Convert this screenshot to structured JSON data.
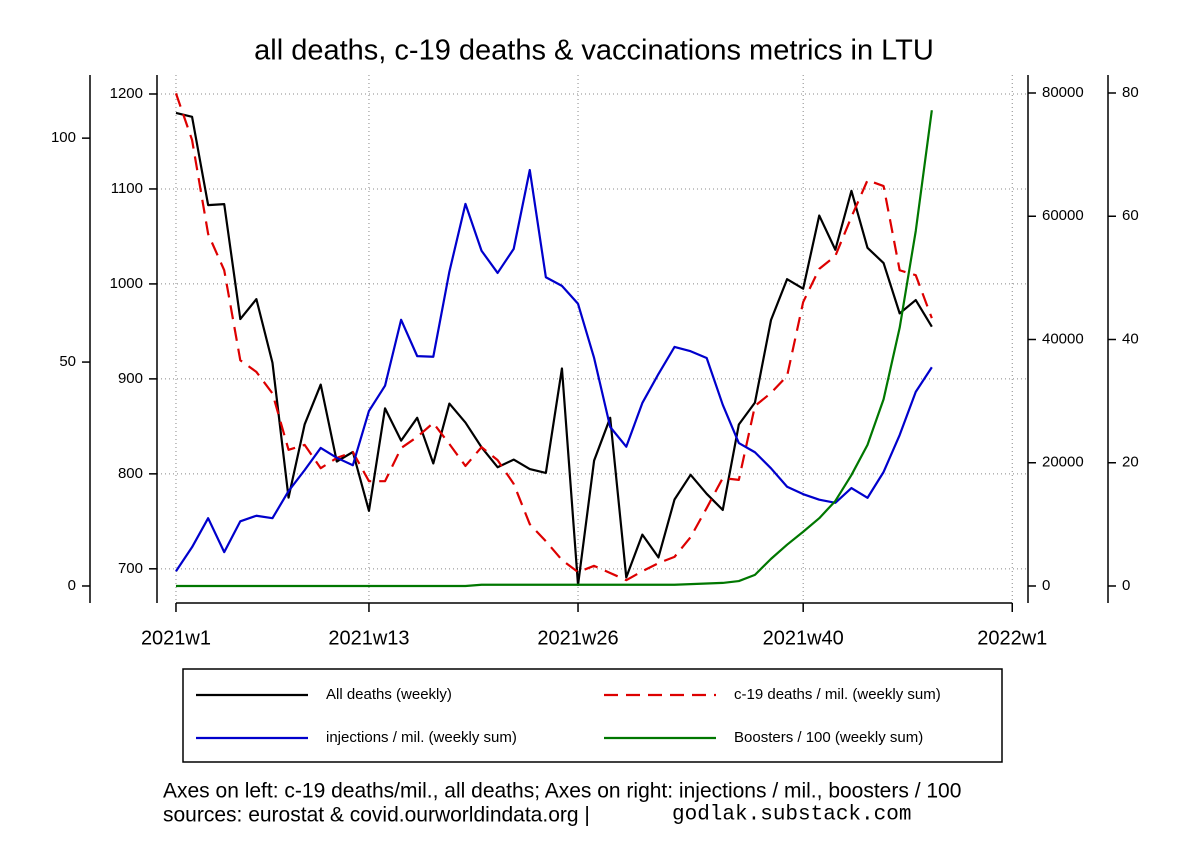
{
  "chart_data": {
    "type": "line",
    "title": "all deaths, c-19 deaths & vaccinations metrics in LTU",
    "caption": "Axes on left: c-19 deaths/mil., all deaths; Axes on right: injections / mil., boosters / 100",
    "source": "sources: eurostat & covid.ourworldindata.org |",
    "credit": "godlak.substack.com",
    "x": [
      1,
      2,
      3,
      4,
      5,
      6,
      7,
      8,
      9,
      10,
      11,
      12,
      13,
      14,
      15,
      16,
      17,
      18,
      19,
      20,
      21,
      22,
      23,
      24,
      25,
      26,
      27,
      28,
      29,
      30,
      31,
      32,
      33,
      34,
      35,
      36,
      37,
      38,
      39,
      40,
      41,
      42,
      43,
      44,
      45,
      46,
      47,
      48
    ],
    "xlim": [
      -0.18,
      53.98
    ],
    "xticks": [
      {
        "value": 1,
        "label": "2021w1"
      },
      {
        "value": 13,
        "label": "2021w13"
      },
      {
        "value": 26,
        "label": "2021w26"
      },
      {
        "value": 40,
        "label": "2021w40"
      },
      {
        "value": 53,
        "label": "2022w1"
      }
    ],
    "ylim": [
      664,
      1220
    ],
    "yticks": [
      700,
      800,
      900,
      1000,
      1100,
      1200
    ],
    "y3lim": [
      -3.8,
      114.1
    ],
    "y3ticks": [
      0,
      50,
      100
    ],
    "y2lim": [
      -2760,
      82920
    ],
    "y2ticks": [
      0,
      20000,
      40000,
      60000,
      80000
    ],
    "y4lim": [
      -2.76,
      82.92
    ],
    "y4ticks": [
      0,
      20,
      40,
      60,
      80
    ],
    "grid": true,
    "series": [
      {
        "name": "All deaths (weekly)",
        "color": "#000000",
        "axis": "y",
        "dashed": false,
        "values": [
          1180,
          1176,
          1083,
          1084,
          963,
          984,
          917,
          775,
          852,
          894,
          813,
          823,
          761,
          869,
          835,
          859,
          811,
          874,
          854,
          828,
          807,
          815,
          805,
          801,
          911,
          683,
          814,
          859,
          691,
          736,
          712,
          773,
          799,
          779,
          762,
          852,
          875,
          962,
          1005,
          995,
          1072,
          1036,
          1098,
          1038,
          1022,
          969,
          983,
          955
        ]
      },
      {
        "name": "c-19 deaths / mil. (weekly sum)",
        "color": "#dd0000",
        "axis": "y3",
        "dashed": true,
        "values": [
          110,
          99.6,
          78.6,
          70.5,
          50.4,
          47.8,
          43,
          30.4,
          31.5,
          26.3,
          28.6,
          29.9,
          23.4,
          23.4,
          30.8,
          33.3,
          36.4,
          31.7,
          26.8,
          31,
          28.1,
          22.8,
          13.8,
          10,
          5.8,
          3.1,
          4.5,
          2.9,
          1.3,
          3.3,
          5.1,
          6.5,
          10.9,
          17.4,
          24.1,
          23.7,
          40.2,
          43.1,
          46.9,
          63.4,
          70.8,
          73.7,
          82.4,
          90.6,
          89.3,
          70.5,
          69.4,
          59.8
        ]
      },
      {
        "name": "injections / mil. (weekly sum)",
        "color": "#0000cc",
        "axis": "y2",
        "dashed": false,
        "values": [
          2400,
          6300,
          11000,
          5500,
          10500,
          11400,
          11000,
          15400,
          18800,
          22400,
          20800,
          19600,
          28400,
          32500,
          43200,
          37300,
          37200,
          51000,
          62000,
          54400,
          50800,
          54700,
          67500,
          50100,
          48700,
          45800,
          37000,
          25800,
          22600,
          29700,
          34400,
          38800,
          38100,
          37000,
          29400,
          23200,
          21700,
          19100,
          16100,
          14900,
          14000,
          13500,
          15900,
          14300,
          18500,
          24500,
          31500,
          35500
        ]
      },
      {
        "name": "Boosters / 100 (weekly sum)",
        "color": "#007700",
        "axis": "y4",
        "dashed": false,
        "values": [
          0,
          0,
          0,
          0,
          0,
          0,
          0,
          0,
          0,
          0,
          0,
          0,
          0,
          0,
          0,
          0,
          0,
          0,
          0,
          0.2,
          0.2,
          0.2,
          0.2,
          0.2,
          0.2,
          0.2,
          0.2,
          0.2,
          0.2,
          0.2,
          0.2,
          0.2,
          0.3,
          0.4,
          0.5,
          0.8,
          1.8,
          4.4,
          6.7,
          8.8,
          11,
          13.8,
          18,
          22.9,
          30.3,
          41.9,
          57.6,
          77.2
        ]
      }
    ]
  }
}
